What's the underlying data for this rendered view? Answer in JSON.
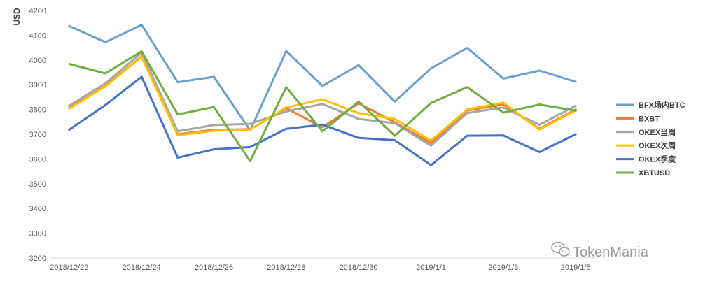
{
  "chart_data": {
    "type": "line",
    "title": "",
    "xlabel": "",
    "ylabel": "USD",
    "ylim": [
      3200,
      4200
    ],
    "yticks": [
      3200,
      3300,
      3400,
      3500,
      3600,
      3700,
      3800,
      3900,
      4000,
      4100,
      4200
    ],
    "categories": [
      "2018/12/22",
      "2018/12/23",
      "2018/12/24",
      "2018/12/25",
      "2018/12/26",
      "2018/12/27",
      "2018/12/28",
      "2018/12/29",
      "2018/12/30",
      "2018/12/31",
      "2019/1/1",
      "2019/1/2",
      "2019/1/3",
      "2019/1/4",
      "2019/1/5"
    ],
    "xtick_labels": [
      "2018/12/22",
      "2018/12/24",
      "2018/12/26",
      "2018/12/28",
      "2018/12/30",
      "2019/1/1",
      "2019/1/3",
      "2019/1/5"
    ],
    "grid": false,
    "legend_position": "right",
    "series": [
      {
        "name": "BFX场内BTC",
        "color": "#6b9fcb",
        "values": [
          4137,
          4072,
          4142,
          3910,
          3932,
          3715,
          4036,
          3895,
          3979,
          3832,
          3966,
          4049,
          3925,
          3957,
          3912
        ]
      },
      {
        "name": "BXBT",
        "color": "#ed7d31",
        "values": [
          3805,
          3895,
          4015,
          3700,
          3718,
          3720,
          3805,
          3728,
          3825,
          3748,
          3665,
          3796,
          3820,
          3722,
          3800
        ]
      },
      {
        "name": "OKEX当周",
        "color": "#a5a5a5",
        "values": [
          3815,
          3905,
          4030,
          3712,
          3737,
          3742,
          3792,
          3822,
          3762,
          3745,
          3654,
          3786,
          3808,
          3738,
          3815
        ]
      },
      {
        "name": "OKEX次周",
        "color": "#ffc000",
        "values": [
          3803,
          3893,
          4013,
          3696,
          3714,
          3719,
          3808,
          3841,
          3785,
          3762,
          3674,
          3800,
          3828,
          3719,
          3796
        ]
      },
      {
        "name": "OKEX季度",
        "color": "#4472c4",
        "values": [
          3718,
          3818,
          3932,
          3605,
          3639,
          3648,
          3722,
          3739,
          3685,
          3676,
          3575,
          3694,
          3695,
          3628,
          3700
        ]
      },
      {
        "name": "XBTUSD",
        "color": "#70ad47",
        "values": [
          3984,
          3946,
          4035,
          3780,
          3810,
          3591,
          3890,
          3712,
          3832,
          3694,
          3826,
          3890,
          3787,
          3820,
          3795
        ]
      }
    ]
  },
  "watermark": {
    "text": "TokenMania",
    "icon": "wechat-icon"
  }
}
